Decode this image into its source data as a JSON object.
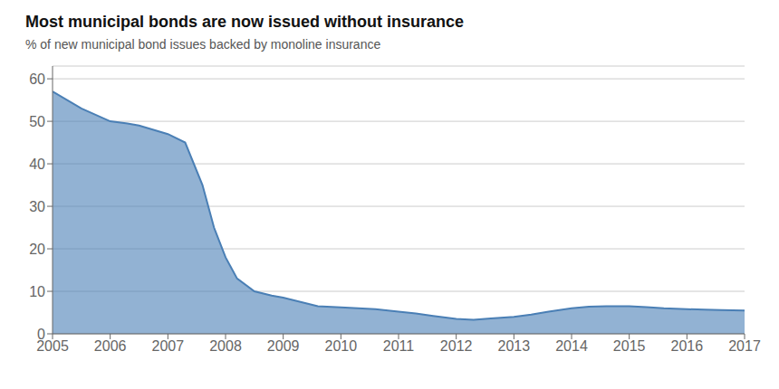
{
  "chart_data": {
    "type": "area",
    "title": "Most municipal bonds are now issued without insurance",
    "subtitle": "% of new municipal bond issues backed by monoline insurance",
    "x": [
      2005,
      2005.5,
      2006,
      2006.3,
      2006.5,
      2007,
      2007.3,
      2007.6,
      2007.8,
      2008,
      2008.2,
      2008.5,
      2008.8,
      2009,
      2009.3,
      2009.6,
      2010,
      2010.3,
      2010.6,
      2011,
      2011.3,
      2011.6,
      2012,
      2012.3,
      2012.6,
      2013,
      2013.3,
      2013.6,
      2014,
      2014.3,
      2014.6,
      2015,
      2015.3,
      2015.6,
      2016,
      2016.3,
      2016.6,
      2017
    ],
    "values": [
      57,
      53,
      50,
      49.5,
      49,
      47,
      45,
      35,
      25,
      18,
      13,
      10,
      9,
      8.5,
      7.5,
      6.5,
      6.2,
      6.0,
      5.8,
      5.2,
      4.8,
      4.2,
      3.5,
      3.3,
      3.6,
      4.0,
      4.5,
      5.2,
      6.0,
      6.4,
      6.5,
      6.5,
      6.3,
      6.0,
      5.8,
      5.7,
      5.6,
      5.5
    ],
    "color": "#4a7fb5",
    "xlim": [
      2005,
      2017
    ],
    "xticks": [
      2005,
      2006,
      2007,
      2008,
      2009,
      2010,
      2011,
      2012,
      2013,
      2014,
      2015,
      2016,
      2017
    ],
    "ylim": [
      0,
      63
    ],
    "yticks": [
      0,
      10,
      20,
      30,
      40,
      50,
      60
    ],
    "grid": true
  }
}
